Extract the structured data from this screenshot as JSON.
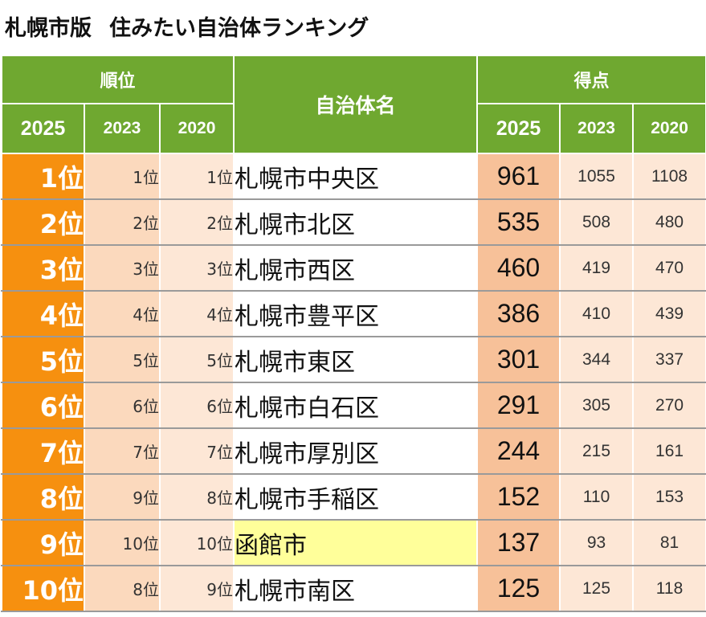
{
  "title": {
    "part1": "札幌市版",
    "part2": "住みたい自治体ランキング"
  },
  "header": {
    "rank_group": "順位",
    "name": "自治体名",
    "score_group": "得点",
    "rank_2025": "2025",
    "rank_2023": "2023",
    "rank_2020": "2020",
    "score_2025": "2025",
    "score_2023": "2023",
    "score_2020": "2020"
  },
  "rows": [
    {
      "rank_2025": "1位",
      "rank_2023": "1位",
      "rank_2020": "1位",
      "name": "札幌市中央区",
      "score_2025": "961",
      "score_2023": "1055",
      "score_2020": "1108"
    },
    {
      "rank_2025": "2位",
      "rank_2023": "2位",
      "rank_2020": "2位",
      "name": "札幌市北区",
      "score_2025": "535",
      "score_2023": "508",
      "score_2020": "480"
    },
    {
      "rank_2025": "3位",
      "rank_2023": "3位",
      "rank_2020": "3位",
      "name": "札幌市西区",
      "score_2025": "460",
      "score_2023": "419",
      "score_2020": "470"
    },
    {
      "rank_2025": "4位",
      "rank_2023": "4位",
      "rank_2020": "4位",
      "name": "札幌市豊平区",
      "score_2025": "386",
      "score_2023": "410",
      "score_2020": "439"
    },
    {
      "rank_2025": "5位",
      "rank_2023": "5位",
      "rank_2020": "5位",
      "name": "札幌市東区",
      "score_2025": "301",
      "score_2023": "344",
      "score_2020": "337"
    },
    {
      "rank_2025": "6位",
      "rank_2023": "6位",
      "rank_2020": "6位",
      "name": "札幌市白石区",
      "score_2025": "291",
      "score_2023": "305",
      "score_2020": "270"
    },
    {
      "rank_2025": "7位",
      "rank_2023": "7位",
      "rank_2020": "7位",
      "name": "札幌市厚別区",
      "score_2025": "244",
      "score_2023": "215",
      "score_2020": "161"
    },
    {
      "rank_2025": "8位",
      "rank_2023": "9位",
      "rank_2020": "8位",
      "name": "札幌市手稲区",
      "score_2025": "152",
      "score_2023": "110",
      "score_2020": "153"
    },
    {
      "rank_2025": "9位",
      "rank_2023": "10位",
      "rank_2020": "10位",
      "name": "函館市",
      "score_2025": "137",
      "score_2023": "93",
      "score_2020": "81",
      "highlight": true
    },
    {
      "rank_2025": "10位",
      "rank_2023": "8位",
      "rank_2020": "9位",
      "name": "札幌市南区",
      "score_2025": "125",
      "score_2023": "125",
      "score_2020": "118"
    }
  ],
  "colors": {
    "header_green": "#6fa830",
    "rank_orange": "#f6900f",
    "score_2025_bg": "#f7c199",
    "sub_bg": "#fde7d6",
    "highlight_yellow": "#ffff9a"
  }
}
